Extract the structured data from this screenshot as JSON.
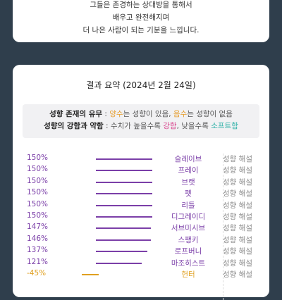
{
  "intro": {
    "line1": "그들은 존경하는 상대방을 통해서",
    "line2": "배우고 완전해지며",
    "line3": "더 나은 사람이 되는 기분을 느낍니다."
  },
  "summary": {
    "title": "결과 요약 (2024년 2월 24일)",
    "legend1": {
      "label": "성향 존재의 유무",
      "sep": " : ",
      "pos": "양수",
      "pos_text": "는 성향이 있음, ",
      "neg": "음수",
      "neg_text": "는 성향이 없음"
    },
    "legend2": {
      "label": "성향의 강함과 약함",
      "sep": " : 수치가 높을수록 ",
      "strong": "강함",
      "mid": ", 낮을수록 ",
      "soft": "소프트함"
    }
  },
  "colors": {
    "positive": "#7b3fa8",
    "negative": "#e0a020",
    "orange": "#e69c2a",
    "pink": "#d9478f",
    "teal": "#2bb0a6"
  },
  "detail_label": "성향 해설",
  "results": [
    {
      "pct_label": "150%",
      "value": 150,
      "name": "슬레이브"
    },
    {
      "pct_label": "150%",
      "value": 150,
      "name": "프레이"
    },
    {
      "pct_label": "150%",
      "value": 150,
      "name": "브랫"
    },
    {
      "pct_label": "150%",
      "value": 150,
      "name": "펫"
    },
    {
      "pct_label": "150%",
      "value": 150,
      "name": "리틀"
    },
    {
      "pct_label": "150%",
      "value": 150,
      "name": "디그레이디"
    },
    {
      "pct_label": "147%",
      "value": 147,
      "name": "서브미시브"
    },
    {
      "pct_label": "146%",
      "value": 146,
      "name": "스팽키"
    },
    {
      "pct_label": "137%",
      "value": 137,
      "name": "로프버니"
    },
    {
      "pct_label": "121%",
      "value": 121,
      "name": "마조히스트"
    },
    {
      "pct_label": "-45%",
      "value": -45,
      "name": "헌터"
    }
  ]
}
